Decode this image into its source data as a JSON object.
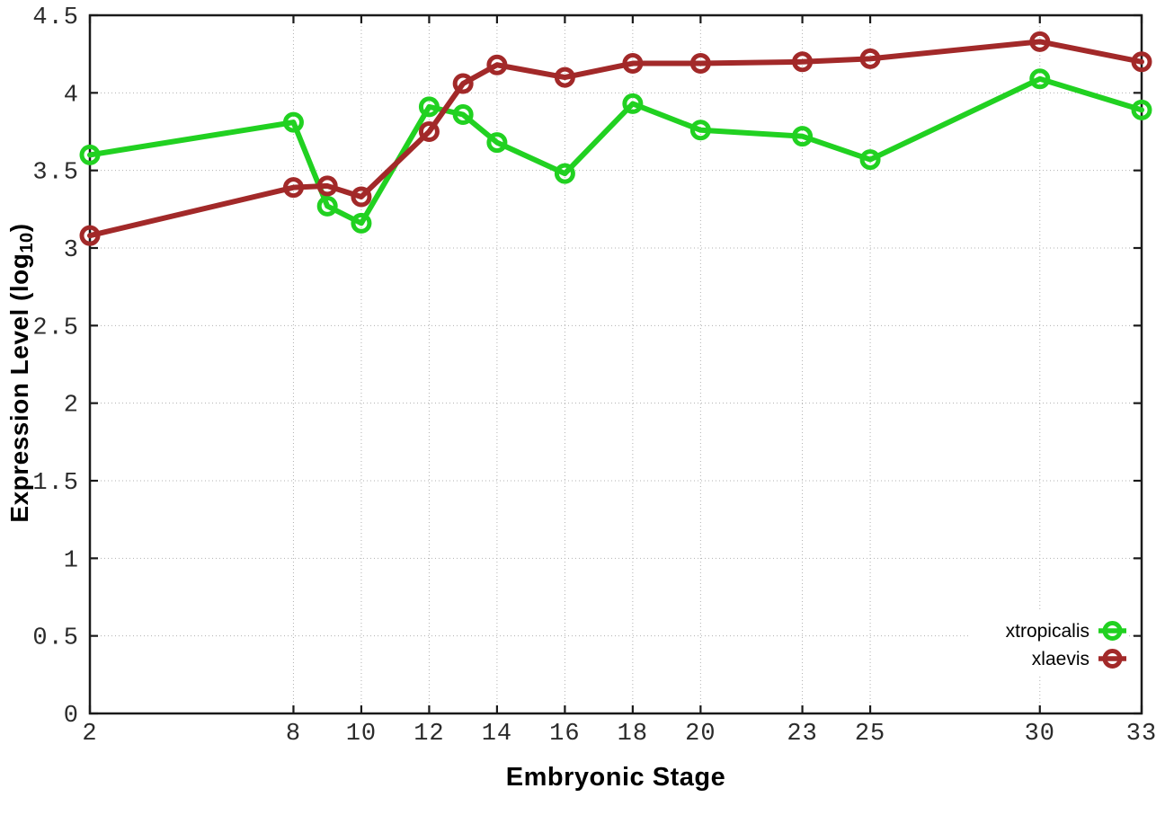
{
  "chart_data": {
    "type": "line",
    "title": "",
    "xlabel": "Embryonic Stage",
    "ylabel": "Expression Level (log10)",
    "ylabel_parts": {
      "main": "Expression Level (log",
      "sub": "10",
      "tail": ")"
    },
    "x": [
      2,
      8,
      9,
      10,
      12,
      13,
      14,
      16,
      18,
      20,
      23,
      25,
      30,
      33
    ],
    "series": [
      {
        "name": "xtropicalis",
        "color": "#21d121",
        "values": [
          3.6,
          3.81,
          3.27,
          3.16,
          3.91,
          3.86,
          3.68,
          3.48,
          3.93,
          3.76,
          3.72,
          3.57,
          4.09,
          3.89
        ]
      },
      {
        "name": "xlaevis",
        "color": "#a22929",
        "values": [
          3.08,
          3.39,
          3.4,
          3.33,
          3.75,
          4.06,
          4.18,
          4.1,
          4.19,
          4.19,
          4.2,
          4.22,
          4.33,
          4.2
        ]
      }
    ],
    "xticks": [
      2,
      8,
      10,
      12,
      14,
      16,
      18,
      20,
      23,
      25,
      30,
      33
    ],
    "yticks": [
      0,
      0.5,
      1,
      1.5,
      2,
      2.5,
      3,
      3.5,
      4,
      4.5
    ],
    "xlim": [
      2,
      33
    ],
    "ylim": [
      0,
      4.5
    ],
    "grid": true,
    "legend_position": "bottom-right",
    "style": {
      "axis_color": "#1a1a1a",
      "grid_color": "#b0b0b0",
      "tick_label_color": "#2b2b2b",
      "background": "#ffffff"
    }
  }
}
